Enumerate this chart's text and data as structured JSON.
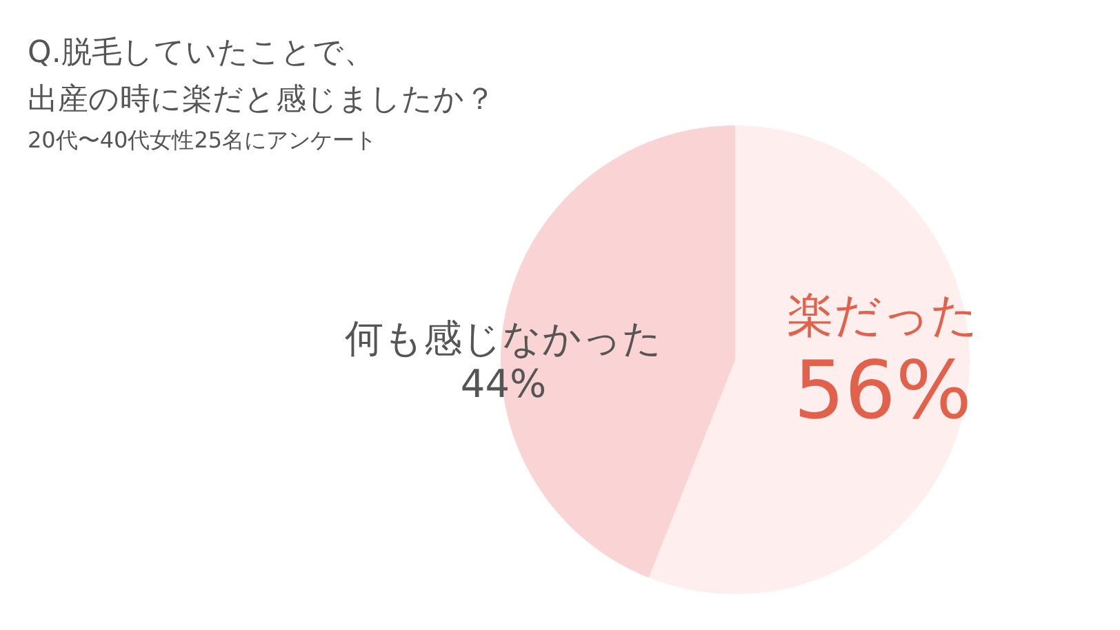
{
  "chart_data": {
    "type": "pie",
    "title": "Q.脱毛していたことで、出産の時に楽だと感じましたか？",
    "subtitle": "20代〜40代女性25名にアンケート",
    "categories": [
      "楽だった",
      "何も感じなかった"
    ],
    "values": [
      56,
      44
    ],
    "colors": [
      "#feeeee",
      "#fad4d4"
    ],
    "value_labels": [
      "56%",
      "44%"
    ]
  }
}
